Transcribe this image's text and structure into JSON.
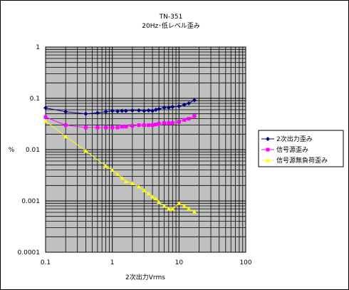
{
  "chart_data": {
    "type": "line",
    "title": "TN-351",
    "subtitle": "20Hz･低レベル歪み",
    "xlabel": "2次出力Vrms",
    "ylabel": "%",
    "xscale": "log",
    "yscale": "log",
    "xlim": [
      0.1,
      100
    ],
    "ylim": [
      0.0001,
      1
    ],
    "xticks": [
      "0.1",
      "1",
      "10",
      "100"
    ],
    "yticks": [
      "0.0001",
      "0.001",
      "0.01",
      "0.1",
      "1"
    ],
    "grid": true,
    "plot_background": "#c0c0c0",
    "legend_position": "right",
    "series": [
      {
        "name": "2次出力歪み",
        "color": "#000080",
        "marker": "diamond",
        "x": [
          0.1,
          0.2,
          0.4,
          0.6,
          0.8,
          1.0,
          1.2,
          1.4,
          1.6,
          2.0,
          2.5,
          3.0,
          3.5,
          4.0,
          4.5,
          5.0,
          6.0,
          7.0,
          8.0,
          10.0,
          12.0,
          14.0,
          17.0
        ],
        "y": [
          0.065,
          0.055,
          0.05,
          0.052,
          0.055,
          0.057,
          0.056,
          0.057,
          0.057,
          0.058,
          0.058,
          0.057,
          0.058,
          0.057,
          0.06,
          0.062,
          0.066,
          0.066,
          0.068,
          0.07,
          0.075,
          0.08,
          0.092
        ]
      },
      {
        "name": "信号源歪み",
        "color": "#ff00ff",
        "marker": "square",
        "x": [
          0.1,
          0.2,
          0.4,
          0.6,
          0.8,
          1.0,
          1.2,
          1.4,
          1.6,
          2.0,
          2.5,
          3.0,
          3.5,
          4.0,
          4.5,
          5.0,
          6.0,
          7.0,
          8.0,
          10.0,
          12.0,
          14.0,
          17.0
        ],
        "y": [
          0.043,
          0.03,
          0.027,
          0.027,
          0.027,
          0.027,
          0.027,
          0.028,
          0.028,
          0.029,
          0.03,
          0.03,
          0.03,
          0.03,
          0.031,
          0.032,
          0.033,
          0.033,
          0.033,
          0.035,
          0.038,
          0.04,
          0.045
        ]
      },
      {
        "name": "信号源無負荷歪み",
        "color": "#ffff00",
        "marker": "triangle",
        "x": [
          0.1,
          0.2,
          0.4,
          0.8,
          1.0,
          1.2,
          1.4,
          1.6,
          2.0,
          2.5,
          3.0,
          3.5,
          4.0,
          4.5,
          5.0,
          6.0,
          7.0,
          8.0,
          10.0,
          12.0,
          14.0,
          17.0
        ],
        "y": [
          0.036,
          0.018,
          0.0095,
          0.0048,
          0.004,
          0.0033,
          0.0028,
          0.0024,
          0.0022,
          0.0019,
          0.0016,
          0.0014,
          0.0012,
          0.0011,
          0.00095,
          0.0008,
          0.0007,
          0.0007,
          0.0009,
          0.0008,
          0.0007,
          0.00062
        ]
      }
    ]
  }
}
